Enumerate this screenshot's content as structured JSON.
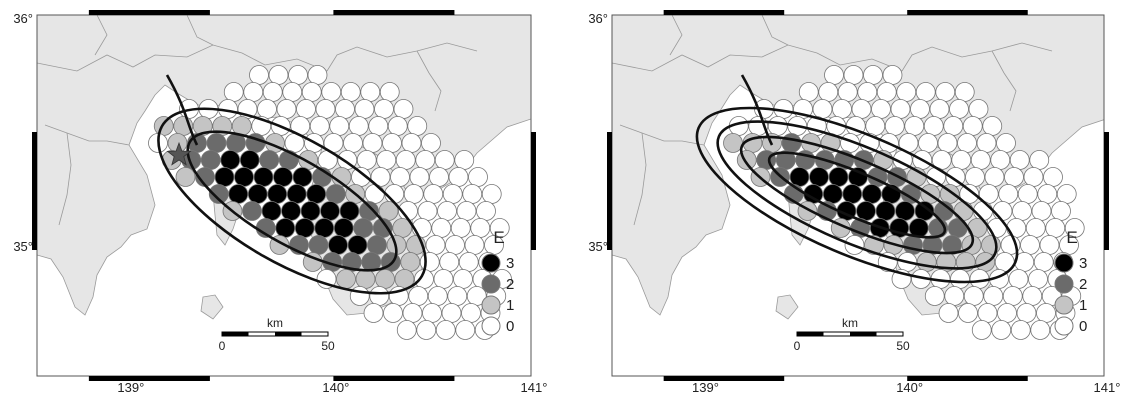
{
  "legend": {
    "title": "E",
    "classes": [
      {
        "value": "3",
        "color": "#000000"
      },
      {
        "value": "2",
        "color": "#6b6b6b"
      },
      {
        "value": "1",
        "color": "#c4c4c4"
      },
      {
        "value": "0",
        "color": "#ffffff"
      }
    ]
  },
  "axes": {
    "lat_labels": [
      "36°",
      "35°"
    ],
    "lon_labels": [
      "139°",
      "140°",
      "141°"
    ]
  },
  "scale_bar": {
    "unit": "km",
    "start": "0",
    "end": "50"
  },
  "colors": {
    "land": "#e6e6e6",
    "sea": "#ffffff",
    "grid_fill": "#ffffff"
  }
}
